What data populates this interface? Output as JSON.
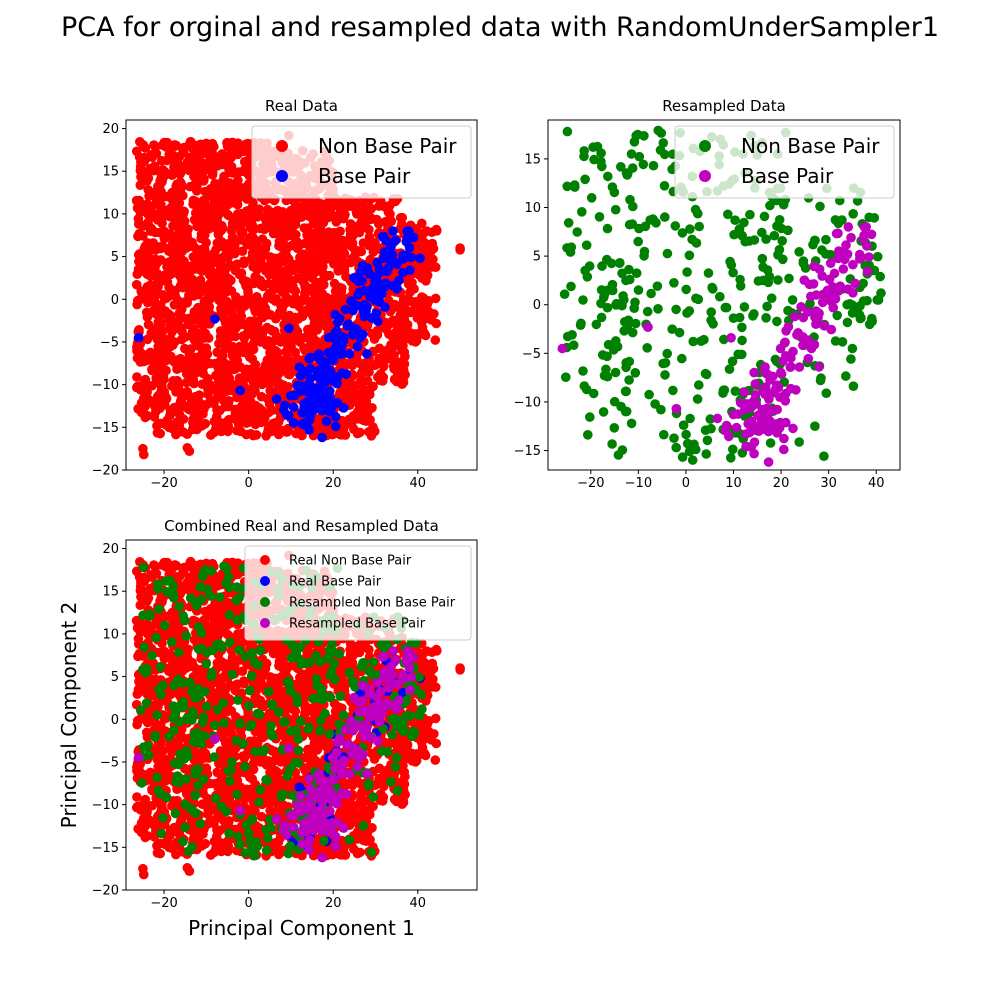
{
  "figure": {
    "title": "PCA for orginal and resampled data with RandomUnderSampler1"
  },
  "colors": {
    "real_non_base": "#ff0000",
    "real_base": "#0000ff",
    "res_non_base": "#008000",
    "res_base": "#bf00bf"
  },
  "chart_data": [
    {
      "type": "scatter",
      "title": "Real Data",
      "xlabel": "",
      "ylabel": "",
      "xlim": [
        -29,
        54
      ],
      "ylim": [
        -20,
        21
      ],
      "xticks": [
        -20,
        0,
        20,
        40
      ],
      "yticks": [
        -20,
        -15,
        -10,
        -5,
        0,
        5,
        10,
        15,
        20
      ],
      "legend": {
        "position": "upper right",
        "fontsize": "large"
      },
      "series": [
        {
          "name": "Non Base Pair",
          "color": "#ff0000",
          "kind": "real_non_base",
          "approx_point_count": 2500,
          "description_of_extent": "dense cloud from x≈-26 to 44, y≈-18 to 19; outlier near (50, 6)"
        },
        {
          "name": "Base Pair",
          "color": "#0000ff",
          "kind": "real_base",
          "approx_point_count": 200,
          "description_of_extent": "band from (10,-14) to (37,8); outliers near (-26,-4.5), (-8,-2.3), (-2,-10.7), (9,-3.4)"
        }
      ]
    },
    {
      "type": "scatter",
      "title": "Resampled Data",
      "xlabel": "",
      "ylabel": "",
      "xlim": [
        -29,
        45
      ],
      "ylim": [
        -17,
        19
      ],
      "xticks": [
        -20,
        -10,
        0,
        10,
        20,
        30,
        40
      ],
      "yticks": [
        -15,
        -10,
        -5,
        0,
        5,
        10,
        15
      ],
      "legend": {
        "position": "upper right",
        "fontsize": "large"
      },
      "series": [
        {
          "name": "Non Base Pair",
          "color": "#008000",
          "kind": "res_non_base",
          "approx_point_count": 400
        },
        {
          "name": "Base Pair",
          "color": "#bf00bf",
          "kind": "res_base",
          "approx_point_count": 150
        }
      ]
    },
    {
      "type": "scatter",
      "title": "Combined Real and Resampled Data",
      "xlabel": "Principal Component 1",
      "ylabel": "Principal Component 2",
      "xlim": [
        -29,
        54
      ],
      "ylim": [
        -20,
        21
      ],
      "xticks": [
        -20,
        0,
        20,
        40
      ],
      "yticks": [
        -20,
        -15,
        -10,
        -5,
        0,
        5,
        10,
        15,
        20
      ],
      "legend": {
        "position": "upper right",
        "fontsize": "small"
      },
      "series": [
        {
          "name": "Real Non Base Pair",
          "color": "#ff0000",
          "kind": "real_non_base"
        },
        {
          "name": "Real Base Pair",
          "color": "#0000ff",
          "kind": "real_base"
        },
        {
          "name": "Resampled Non Base Pair",
          "color": "#008000",
          "kind": "res_non_base"
        },
        {
          "name": "Resampled Base Pair",
          "color": "#bf00bf",
          "kind": "res_base"
        }
      ]
    }
  ]
}
